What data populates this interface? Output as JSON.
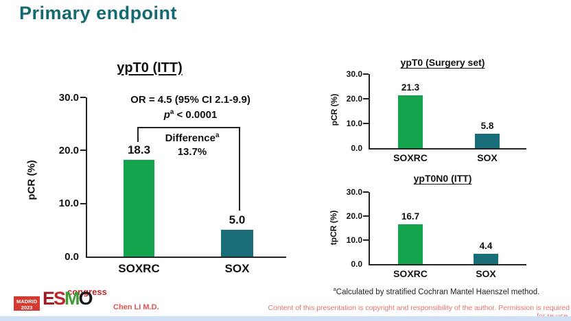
{
  "slide": {
    "title": "Primary endpoint",
    "colors": {
      "title_teal": "#136a71",
      "green_bar": "#14a44d",
      "teal_bar": "#186d79",
      "red_text": "#e0534e",
      "bottom_strip_blue": "#cfe0f2"
    }
  },
  "chart_data": [
    {
      "type": "bar",
      "title": "ypT0 (ITT)",
      "ylabel": "pCR (%)",
      "categories": [
        "SOXRC",
        "SOX"
      ],
      "values": [
        18.3,
        5.0
      ],
      "value_labels": [
        "18.3",
        "5.0"
      ],
      "yticks": [
        "30.0",
        "20.0",
        "10.0",
        "0.0"
      ],
      "ylim": [
        0,
        30
      ],
      "bar_colors": [
        "#14a44d",
        "#186d79"
      ],
      "grid": false,
      "annotations": {
        "or_line": "OR = 4.5 (95% CI 2.1-9.9)",
        "p_italic": "p",
        "p_sup": "a",
        "p_rest": " < 0.0001",
        "difference_label": "Difference",
        "difference_sup": "a",
        "difference_value": "13.7%"
      }
    },
    {
      "type": "bar",
      "title": "ypT0 (Surgery set)",
      "ylabel": "pCR (%)",
      "categories": [
        "SOXRC",
        "SOX"
      ],
      "values": [
        21.3,
        5.8
      ],
      "value_labels": [
        "21.3",
        "5.8"
      ],
      "yticks": [
        "30.0",
        "20.0",
        "10.0",
        "0.0"
      ],
      "ylim": [
        0,
        30
      ],
      "bar_colors": [
        "#14a44d",
        "#186d79"
      ],
      "grid": false
    },
    {
      "type": "bar",
      "title": "ypT0N0 (ITT)",
      "ylabel": "tpCR (%)",
      "categories": [
        "SOXRC",
        "SOX"
      ],
      "values": [
        16.7,
        4.4
      ],
      "value_labels": [
        "16.7",
        "4.4"
      ],
      "yticks": [
        "30.0",
        "20.0",
        "10.0",
        "0.0"
      ],
      "ylim": [
        0,
        30
      ],
      "bar_colors": [
        "#14a44d",
        "#186d79"
      ],
      "grid": false
    }
  ],
  "footer": {
    "footnote_sup": "a",
    "footnote_text": "Calculated by stratified Cochran Mantel Haenszel method.",
    "author": "Chen LI M.D.",
    "copyright": "Content of this presentation is copyright and responsibility of the author. Permission is required for re-use."
  },
  "logo": {
    "venue": "MADRID",
    "year": "2023",
    "letters": [
      "E",
      "S",
      "M",
      "O"
    ],
    "event": "congress"
  }
}
